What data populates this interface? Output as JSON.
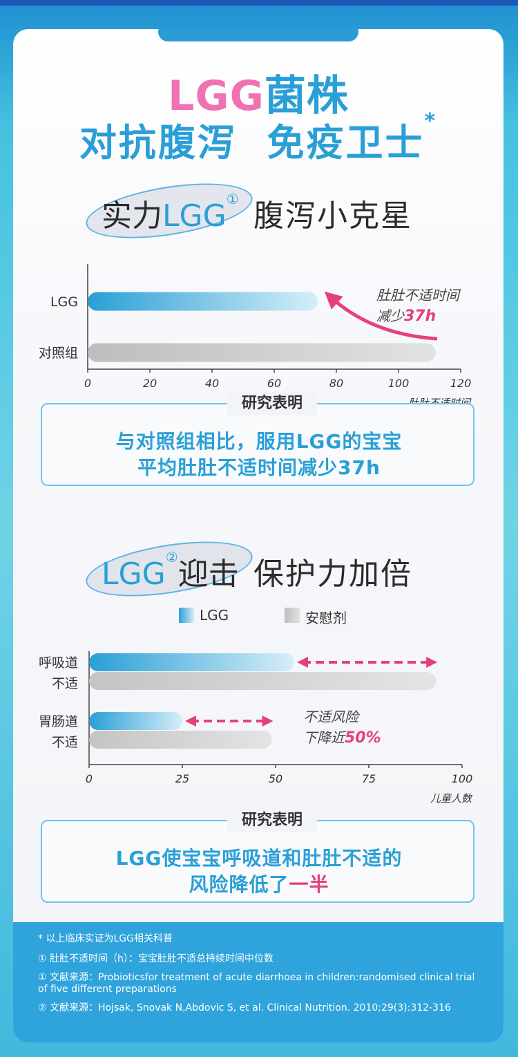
{
  "title": {
    "line1_pink": "LGG",
    "line1_blue": "菌株",
    "line2": "对抗腹泻  免疫卫士",
    "star": "*"
  },
  "section1": {
    "badge_prefix": "实力",
    "badge_lgg": "LGG",
    "badge_circle": "①",
    "right_title": "腹泻小克星"
  },
  "section2": {
    "badge_lgg": "LGG",
    "badge_circle": "②",
    "badge_suffix": "迎击",
    "right_title": "保护力加倍"
  },
  "chart_data": [
    {
      "type": "bar",
      "orientation": "horizontal",
      "categories": [
        "LGG",
        "对照组"
      ],
      "values": [
        74,
        112
      ],
      "xlabel": "肚肚不适时间",
      "xlim": [
        0,
        120
      ],
      "xticks": [
        0,
        20,
        40,
        60,
        80,
        100,
        120
      ],
      "annotation": {
        "line1": "肚肚不适时间",
        "line2_prefix": "减少",
        "line2_value": "37h"
      },
      "colors": {
        "LGG": "#2a9fd6",
        "对照组": "#c8c8c8"
      }
    },
    {
      "type": "bar",
      "orientation": "horizontal",
      "categories": [
        [
          "呼吸道",
          "不适"
        ],
        [
          "胃肠道",
          "不适"
        ]
      ],
      "series": [
        {
          "name": "LGG",
          "values": [
            55,
            25
          ]
        },
        {
          "name": "安慰剂",
          "values": [
            93,
            49
          ]
        }
      ],
      "xlabel": "儿童人数",
      "xlim": [
        0,
        100
      ],
      "xticks": [
        0,
        25,
        50,
        75,
        100
      ],
      "annotation": {
        "line1": "不适风险",
        "line2_prefix": "下降近",
        "line2_value": "50%"
      },
      "colors": {
        "LGG": "#2a9fd6",
        "安慰剂": "#c8c8c8"
      }
    }
  ],
  "conclusion1": {
    "label": "研究表明",
    "line1": "与对照组相比，服用LGG的宝宝",
    "line2": "平均肚肚不适时间减少37h"
  },
  "conclusion2": {
    "label": "研究表明",
    "line1": "LGG使宝宝呼吸道和肚肚不适的",
    "line2_prefix": "风险降低了",
    "line2_pink": "一半"
  },
  "footer": {
    "note": "* 以上临床实证为LGG相关科普",
    "ref1": "① 肚肚不适时间（h）：宝宝肚肚不适总持续时间中位数",
    "ref2": "① 文献来源：Probioticsfor treatment of acute diarrhoea in children:randomised clinical trial of five different preparations",
    "ref3": "② 文献来源：Hojsak, Snovak N,Abdovic S, et al. Clinical Nutrition. 2010;29(3):312-316"
  }
}
